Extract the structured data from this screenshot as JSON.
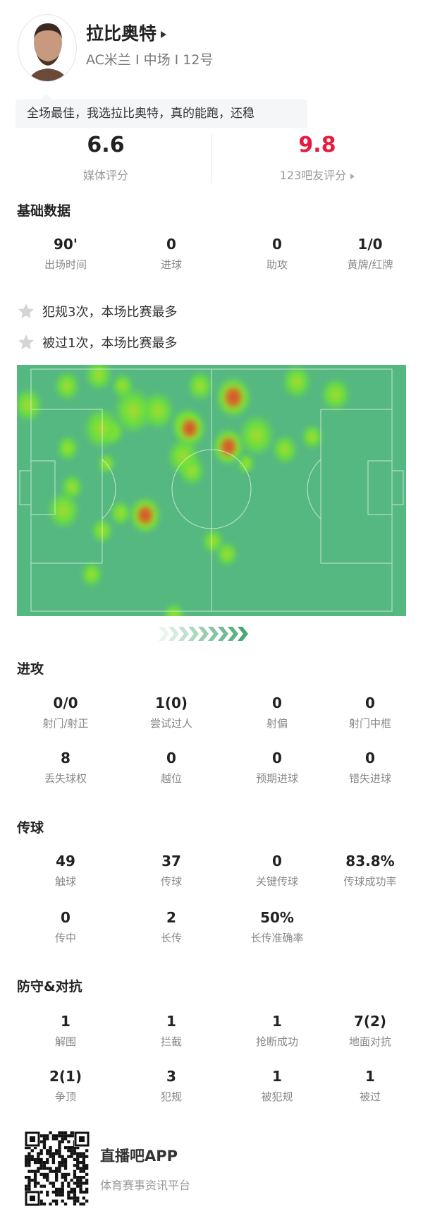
{
  "player": {
    "name": "拉比奥特",
    "info": "AC米兰 I 中场 I 12号",
    "comment": "全场最佳，我选拉比奥特，真的能跑，还稳"
  },
  "ratings": {
    "media": {
      "value": "6.6",
      "label": "媒体评分"
    },
    "fans": {
      "value": "9.8",
      "label": "123吧友评分",
      "color": "#e8193c"
    }
  },
  "basic": {
    "title": "基础数据",
    "items": [
      {
        "v": "90'",
        "l": "出场时间"
      },
      {
        "v": "0",
        "l": "进球"
      },
      {
        "v": "0",
        "l": "助攻"
      },
      {
        "v": "1/0",
        "l": "黄牌/红牌"
      }
    ]
  },
  "highlights": [
    "犯规3次，本场比赛最多",
    "被过1次，本场比赛最多"
  ],
  "heatmap": {
    "pitch_color": "#56b881",
    "arrow_icon": "chevron-right-icon"
  },
  "attack": {
    "title": "进攻",
    "rows": [
      [
        {
          "v": "0/0",
          "l": "射门/射正"
        },
        {
          "v": "1(0)",
          "l": "尝试过人"
        },
        {
          "v": "0",
          "l": "射偏"
        },
        {
          "v": "0",
          "l": "射门中框"
        }
      ],
      [
        {
          "v": "8",
          "l": "丢失球权"
        },
        {
          "v": "0",
          "l": "越位"
        },
        {
          "v": "0",
          "l": "预期进球"
        },
        {
          "v": "0",
          "l": "错失进球"
        }
      ]
    ]
  },
  "passing": {
    "title": "传球",
    "rows": [
      [
        {
          "v": "49",
          "l": "触球"
        },
        {
          "v": "37",
          "l": "传球"
        },
        {
          "v": "0",
          "l": "关键传球"
        },
        {
          "v": "83.8%",
          "l": "传球成功率"
        }
      ],
      [
        {
          "v": "0",
          "l": "传中"
        },
        {
          "v": "2",
          "l": "长传"
        },
        {
          "v": "50%",
          "l": "长传准确率"
        }
      ]
    ]
  },
  "defense": {
    "title": "防守&对抗",
    "rows": [
      [
        {
          "v": "1",
          "l": "解围"
        },
        {
          "v": "1",
          "l": "拦截"
        },
        {
          "v": "1",
          "l": "抢断成功"
        },
        {
          "v": "7(2)",
          "l": "地面对抗"
        }
      ],
      [
        {
          "v": "2(1)",
          "l": "争顶"
        },
        {
          "v": "3",
          "l": "犯规"
        },
        {
          "v": "1",
          "l": "被犯规"
        },
        {
          "v": "1",
          "l": "被过"
        }
      ]
    ]
  },
  "footer": {
    "app": "直播吧APP",
    "slogan": "体育赛事资讯平台"
  }
}
